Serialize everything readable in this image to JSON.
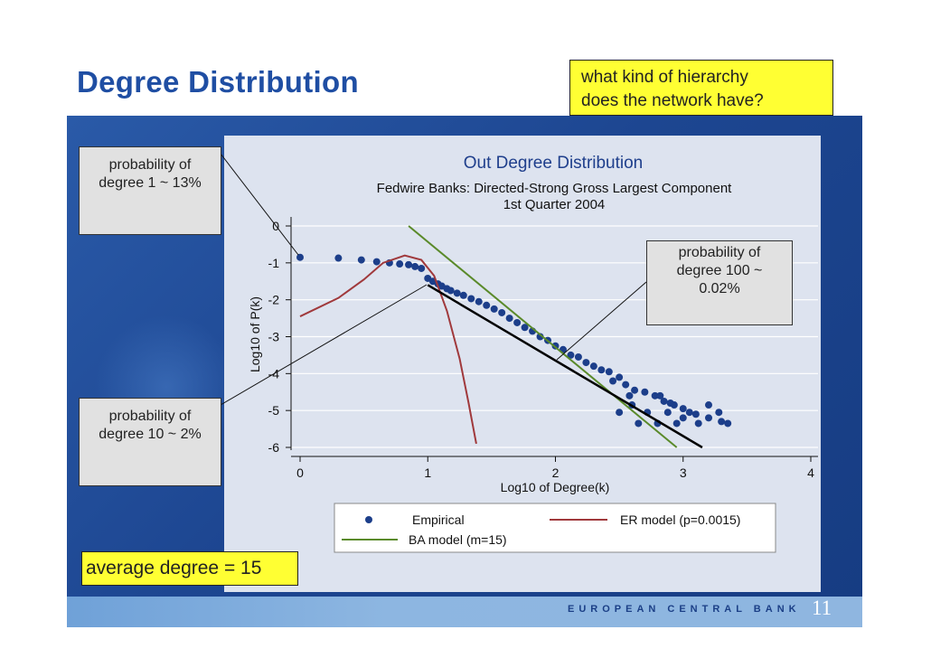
{
  "slide": {
    "title": "Degree Distribution",
    "question_line1": "what kind of hierarchy",
    "question_line2": "does the network have?",
    "callout_deg1_line1": "probability of",
    "callout_deg1_line2": "degree 1 ~ 13%",
    "callout_deg10_line1": "probability of",
    "callout_deg10_line2": "degree 10 ~ 2%",
    "callout_deg100_line1": "probability of",
    "callout_deg100_line2": "degree 100 ~",
    "callout_deg100_line3": "0.02%",
    "average_degree": "average degree = 15",
    "footer_brand": "EUROPEAN CENTRAL BANK",
    "page_number": "11"
  },
  "chart_data": {
    "type": "scatter",
    "title": "Out Degree Distribution",
    "subtitle_line1": "Fedwire Banks: Directed-Strong Gross Largest Component",
    "subtitle_line2": "1st Quarter 2004",
    "xlabel": "Log10 of Degree(k)",
    "ylabel": "Log10 of P(k)",
    "xlim": [
      0,
      4
    ],
    "ylim": [
      -6,
      0
    ],
    "xticks": [
      "0",
      "1",
      "2",
      "3",
      "4"
    ],
    "yticks": [
      "0",
      "-1",
      "-2",
      "-3",
      "-4",
      "-5",
      "-6"
    ],
    "grid": true,
    "legend_position": "bottom",
    "colors": {
      "empirical": "#1c3e8a",
      "er_model": "#a0393c",
      "ba_model": "#5a8a2a",
      "fit_line": "#000000",
      "gridline": "#ffffff"
    },
    "series": [
      {
        "name": "Empirical",
        "kind": "points",
        "points": [
          [
            0.0,
            -0.85
          ],
          [
            0.3,
            -0.87
          ],
          [
            0.48,
            -0.92
          ],
          [
            0.6,
            -0.97
          ],
          [
            0.7,
            -1.0
          ],
          [
            0.78,
            -1.03
          ],
          [
            0.85,
            -1.05
          ],
          [
            0.9,
            -1.1
          ],
          [
            0.95,
            -1.15
          ],
          [
            1.0,
            -1.42
          ],
          [
            1.04,
            -1.5
          ],
          [
            1.08,
            -1.57
          ],
          [
            1.11,
            -1.63
          ],
          [
            1.15,
            -1.7
          ],
          [
            1.18,
            -1.75
          ],
          [
            1.23,
            -1.82
          ],
          [
            1.28,
            -1.88
          ],
          [
            1.34,
            -1.97
          ],
          [
            1.4,
            -2.05
          ],
          [
            1.46,
            -2.15
          ],
          [
            1.52,
            -2.25
          ],
          [
            1.58,
            -2.35
          ],
          [
            1.64,
            -2.5
          ],
          [
            1.7,
            -2.62
          ],
          [
            1.76,
            -2.75
          ],
          [
            1.82,
            -2.85
          ],
          [
            1.88,
            -3.0
          ],
          [
            1.94,
            -3.1
          ],
          [
            2.0,
            -3.25
          ],
          [
            2.06,
            -3.35
          ],
          [
            2.12,
            -3.5
          ],
          [
            2.18,
            -3.55
          ],
          [
            2.24,
            -3.7
          ],
          [
            2.3,
            -3.8
          ],
          [
            2.36,
            -3.9
          ],
          [
            2.42,
            -3.95
          ],
          [
            2.5,
            -4.1
          ],
          [
            2.55,
            -4.3
          ],
          [
            2.62,
            -4.45
          ],
          [
            2.7,
            -4.5
          ],
          [
            2.78,
            -4.6
          ],
          [
            2.85,
            -4.75
          ],
          [
            2.93,
            -4.85
          ],
          [
            3.0,
            -4.95
          ],
          [
            3.1,
            -5.1
          ],
          [
            3.2,
            -5.2
          ],
          [
            3.3,
            -5.3
          ],
          [
            2.5,
            -5.05
          ],
          [
            2.6,
            -4.85
          ],
          [
            2.65,
            -5.35
          ],
          [
            2.72,
            -5.05
          ],
          [
            2.8,
            -5.35
          ],
          [
            2.88,
            -5.05
          ],
          [
            2.95,
            -5.35
          ],
          [
            3.05,
            -5.05
          ],
          [
            3.12,
            -5.35
          ],
          [
            3.2,
            -4.85
          ],
          [
            3.28,
            -5.05
          ],
          [
            3.35,
            -5.35
          ],
          [
            2.82,
            -4.6
          ],
          [
            2.9,
            -4.8
          ],
          [
            3.0,
            -5.2
          ],
          [
            2.45,
            -4.2
          ],
          [
            2.58,
            -4.6
          ]
        ]
      },
      {
        "name": "ER model (p=0.0015)",
        "kind": "line",
        "points": [
          [
            0.0,
            -2.45
          ],
          [
            0.3,
            -1.95
          ],
          [
            0.5,
            -1.45
          ],
          [
            0.65,
            -1.0
          ],
          [
            0.82,
            -0.8
          ],
          [
            0.95,
            -0.92
          ],
          [
            1.05,
            -1.35
          ],
          [
            1.15,
            -2.3
          ],
          [
            1.25,
            -3.6
          ],
          [
            1.32,
            -4.8
          ],
          [
            1.38,
            -5.9
          ]
        ]
      },
      {
        "name": "BA model (m=15)",
        "kind": "line",
        "points": [
          [
            0.85,
            0.0
          ],
          [
            2.95,
            -6.0
          ]
        ]
      },
      {
        "name": "",
        "kind": "fit",
        "points": [
          [
            1.0,
            -1.6
          ],
          [
            3.15,
            -6.0
          ]
        ]
      }
    ]
  }
}
